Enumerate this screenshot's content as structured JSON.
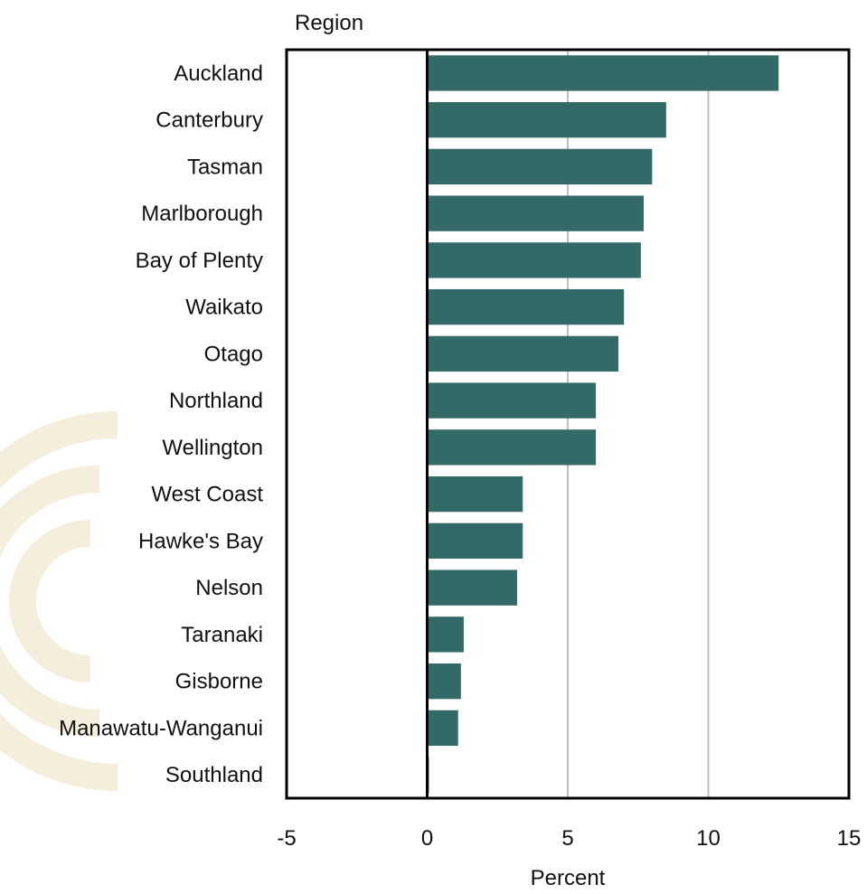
{
  "chart_data": {
    "type": "bar",
    "orientation": "horizontal",
    "categories": [
      "Auckland",
      "Canterbury",
      "Tasman",
      "Marlborough",
      "Bay of Plenty",
      "Waikato",
      "Otago",
      "Northland",
      "Wellington",
      "West Coast",
      "Hawke's Bay",
      "Nelson",
      "Taranaki",
      "Gisborne",
      "Manawatu-Wanganui",
      "Southland"
    ],
    "values": [
      12.5,
      8.5,
      8.0,
      7.7,
      7.6,
      7.0,
      6.8,
      6.0,
      6.0,
      3.4,
      3.4,
      3.2,
      1.3,
      1.2,
      1.1,
      0.05
    ],
    "ylabel": "Region",
    "xlabel": "Percent",
    "xlim": [
      -5,
      15
    ],
    "xticks": [
      -5,
      0,
      5,
      10,
      15
    ],
    "xtick_labels": [
      "-5",
      "0",
      "5",
      "10",
      "15"
    ],
    "grid": "vertical",
    "legend": "none",
    "bar_color": "#336966",
    "gridline_color": "#c0c0c0",
    "watermark_color": "#f6eedc"
  }
}
